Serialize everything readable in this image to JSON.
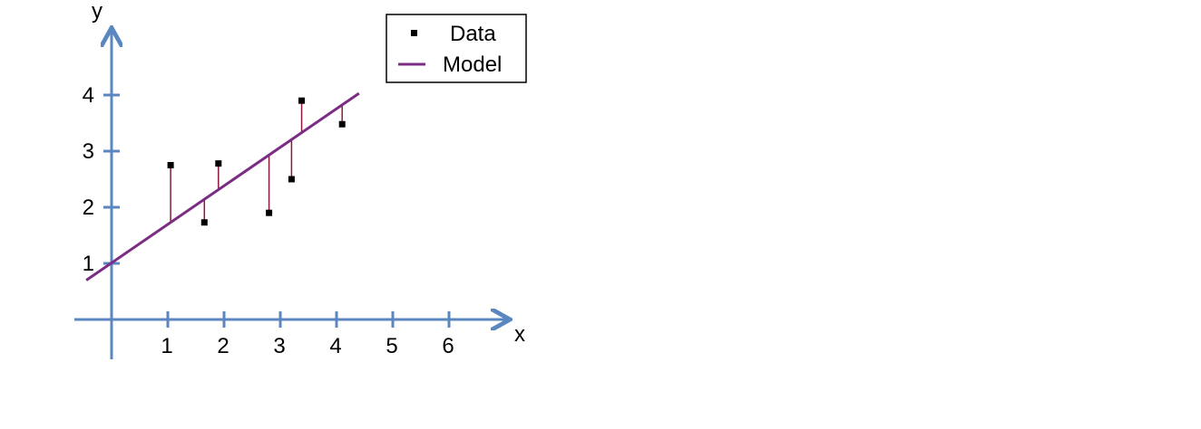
{
  "chart_data": {
    "type": "scatter",
    "xlabel": "x",
    "ylabel": "y",
    "xlim": [
      -0.5,
      7
    ],
    "ylim": [
      -0.7,
      5.3
    ],
    "x_ticks": [
      1,
      2,
      3,
      4,
      5,
      6
    ],
    "y_ticks": [
      1,
      2,
      3,
      4
    ],
    "x_tick_labels": [
      "1",
      "2",
      "3",
      "4",
      "5",
      "6"
    ],
    "y_tick_labels": [
      "1",
      "2",
      "3",
      "4"
    ],
    "grid": false,
    "legend": {
      "position": "top-right",
      "entries": [
        "Data",
        "Model"
      ]
    },
    "series": [
      {
        "name": "Data",
        "kind": "points",
        "x": [
          1.05,
          1.65,
          1.9,
          2.8,
          3.2,
          3.38,
          4.1
        ],
        "y": [
          2.75,
          1.73,
          2.78,
          1.9,
          2.5,
          3.9,
          3.48
        ]
      },
      {
        "name": "Model",
        "kind": "line",
        "x": [
          -0.45,
          4.4
        ],
        "y": [
          0.7,
          4.03
        ]
      }
    ],
    "residuals": true,
    "colors": {
      "axis": "#5b87c0",
      "model": "#7b2d83",
      "residual": "#8b1a3a",
      "points": "#000000"
    }
  }
}
